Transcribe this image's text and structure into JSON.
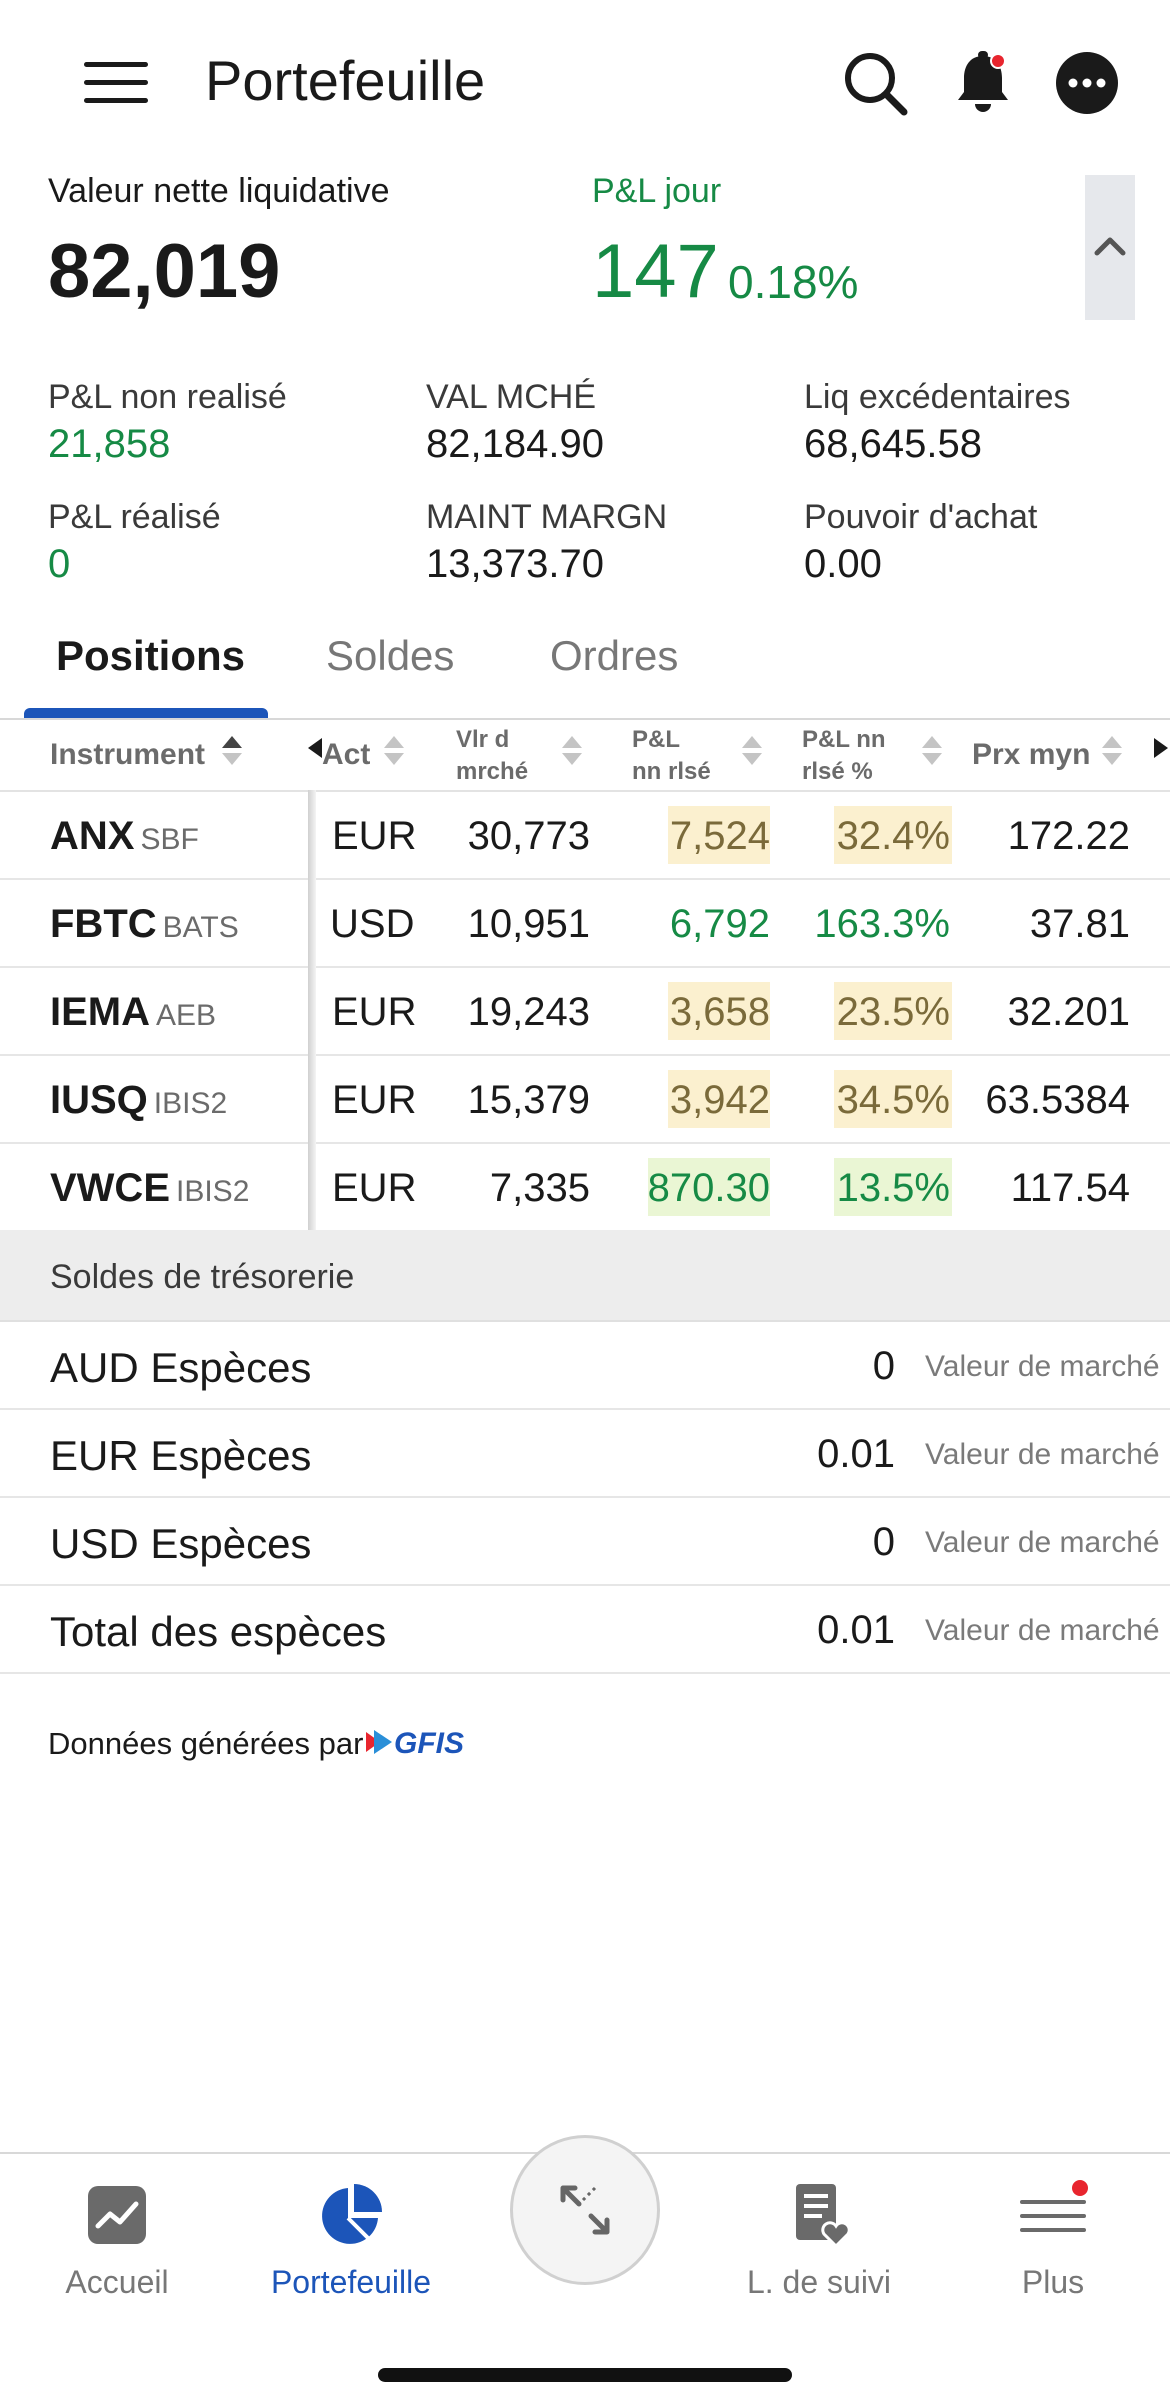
{
  "header": {
    "title": "Portefeuille",
    "icons": [
      "menu-icon",
      "search-icon",
      "bell-icon",
      "more-icon"
    ]
  },
  "summary": {
    "nlv_label": "Valeur nette liquidative",
    "nlv_value": "82,019",
    "pl_day_label": "P&L jour",
    "pl_day_value": "147",
    "pl_day_pct": "0.18%",
    "metrics": [
      {
        "label": "P&L non realisé",
        "value": "21,858"
      },
      {
        "label": "VAL MCHÉ",
        "value": "82,184.90"
      },
      {
        "label": "Liq excédentaires",
        "value": "68,645.58"
      },
      {
        "label": "P&L réalisé",
        "value": "0"
      },
      {
        "label": "MAINT MARGN",
        "value": "13,373.70"
      },
      {
        "label": "Pouvoir d'achat",
        "value": "0.00"
      }
    ]
  },
  "tabs": [
    {
      "label": "Positions",
      "active": true
    },
    {
      "label": "Soldes",
      "active": false
    },
    {
      "label": "Ordres",
      "active": false
    }
  ],
  "table": {
    "headers": {
      "instrument": "Instrument",
      "act": "Act",
      "mkt_val_1": "Vlr d",
      "mkt_val_2": "mrché",
      "unrl_1": "P&L",
      "unrl_2": "nn rlsé",
      "unrl_pct_1": "P&L nn",
      "unrl_pct_2": "rlsé %",
      "avg_price": "Prx myn"
    },
    "rows": [
      {
        "symbol": "ANX",
        "exchange": "SBF",
        "currency": "EUR",
        "mkt_value": "30,773",
        "unrl_pl": "7,524",
        "unrl_pct": "32.4%",
        "avg_price": "172.22"
      },
      {
        "symbol": "FBTC",
        "exchange": "BATS",
        "currency": "USD",
        "mkt_value": "10,951",
        "unrl_pl": "6,792",
        "unrl_pct": "163.3%",
        "avg_price": "37.81"
      },
      {
        "symbol": "IEMA",
        "exchange": "AEB",
        "currency": "EUR",
        "mkt_value": "19,243",
        "unrl_pl": "3,658",
        "unrl_pct": "23.5%",
        "avg_price": "32.201"
      },
      {
        "symbol": "IUSQ",
        "exchange": "IBIS2",
        "currency": "EUR",
        "mkt_value": "15,379",
        "unrl_pl": "3,942",
        "unrl_pct": "34.5%",
        "avg_price": "63.5384"
      },
      {
        "symbol": "VWCE",
        "exchange": "IBIS2",
        "currency": "EUR",
        "mkt_value": "7,335",
        "unrl_pl": "870.30",
        "unrl_pct": "13.5%",
        "avg_price": "117.54"
      }
    ]
  },
  "cash": {
    "section_title": "Soldes de trésorerie",
    "rows": [
      {
        "label": "AUD Espèces",
        "value": "0",
        "sub": "Valeur de marché"
      },
      {
        "label": "EUR Espèces",
        "value": "0.01",
        "sub": "Valeur de marché"
      },
      {
        "label": "USD Espèces",
        "value": "0",
        "sub": "Valeur de marché"
      },
      {
        "label": "Total des espèces",
        "value": "0.01",
        "sub": "Valeur de marché"
      }
    ]
  },
  "credit": {
    "text": "Données générées par",
    "logo_text": "GFIS"
  },
  "bottom_nav": [
    {
      "label": "Accueil",
      "icon": "chart-icon",
      "active": false
    },
    {
      "label": "Portefeuille",
      "icon": "pie-chart-icon",
      "active": true
    },
    {
      "label": "",
      "icon": "expand-icon",
      "active": false
    },
    {
      "label": "L. de suivi",
      "icon": "watchlist-icon",
      "active": false
    },
    {
      "label": "Plus",
      "icon": "menu-icon",
      "active": false
    }
  ],
  "colors": {
    "accent": "#1c55b9",
    "positive": "#168a45",
    "highlight_yellow": "#fbf0cf",
    "highlight_green": "#eaf6d4",
    "notification": "#e8252e"
  }
}
